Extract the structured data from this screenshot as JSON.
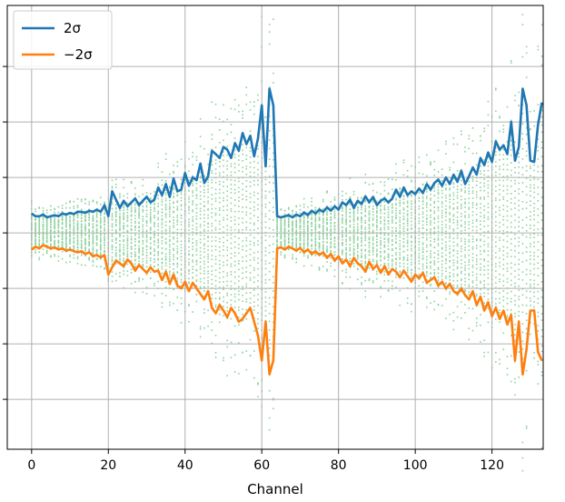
{
  "chart_data": {
    "type": "line",
    "title": "",
    "xlabel": "Channel",
    "ylabel": "",
    "xlim": [
      -6.35,
      133.35
    ],
    "ylim": [
      -3.9,
      4.1
    ],
    "x_ticks": [
      0,
      20,
      40,
      60,
      80,
      100,
      120
    ],
    "x_tick_labels": [
      "0",
      "20",
      "40",
      "60",
      "80",
      "100",
      "120"
    ],
    "y_ticks": [
      -3,
      -2,
      -1,
      0,
      1,
      2,
      3
    ],
    "y_tick_labels_visible": false,
    "grid": true,
    "legend": {
      "position": "upper-left",
      "entries": [
        "2σ",
        "−2σ"
      ]
    },
    "colors": {
      "plus_2sigma": "#1f77b4",
      "minus_2sigma": "#ff7f0e",
      "samples": "#8fd19e",
      "grid": "#b0b0b0"
    },
    "series": [
      {
        "name": "2σ",
        "color": "#1f77b4",
        "values": [
          0.35,
          0.3,
          0.3,
          0.33,
          0.28,
          0.3,
          0.32,
          0.3,
          0.35,
          0.33,
          0.36,
          0.34,
          0.38,
          0.38,
          0.36,
          0.4,
          0.38,
          0.42,
          0.38,
          0.5,
          0.3,
          0.75,
          0.6,
          0.45,
          0.58,
          0.48,
          0.55,
          0.62,
          0.5,
          0.58,
          0.65,
          0.55,
          0.6,
          0.82,
          0.68,
          0.88,
          0.65,
          0.98,
          0.75,
          0.78,
          1.08,
          0.85,
          1.0,
          0.95,
          1.25,
          0.9,
          1.02,
          1.48,
          1.42,
          1.35,
          1.55,
          1.5,
          1.35,
          1.62,
          1.48,
          1.8,
          1.6,
          1.75,
          1.38,
          1.7,
          2.3,
          1.2,
          2.6,
          2.3,
          0.3,
          0.28,
          0.3,
          0.32,
          0.28,
          0.33,
          0.3,
          0.37,
          0.32,
          0.4,
          0.35,
          0.42,
          0.38,
          0.46,
          0.4,
          0.48,
          0.42,
          0.55,
          0.5,
          0.6,
          0.45,
          0.58,
          0.52,
          0.66,
          0.55,
          0.65,
          0.5,
          0.58,
          0.62,
          0.55,
          0.62,
          0.78,
          0.65,
          0.82,
          0.68,
          0.75,
          0.7,
          0.8,
          0.72,
          0.88,
          0.78,
          0.9,
          0.96,
          0.85,
          1.0,
          0.88,
          1.05,
          0.92,
          1.12,
          0.88,
          1.02,
          1.18,
          1.05,
          1.35,
          1.22,
          1.45,
          1.28,
          1.65,
          1.5,
          1.58,
          1.42,
          2.0,
          1.3,
          1.55,
          2.6,
          2.3,
          1.3,
          1.28,
          1.95,
          2.35
        ]
      },
      {
        "name": "−2σ",
        "color": "#ff7f0e",
        "values": [
          -0.3,
          -0.25,
          -0.28,
          -0.22,
          -0.25,
          -0.28,
          -0.26,
          -0.3,
          -0.28,
          -0.32,
          -0.3,
          -0.33,
          -0.35,
          -0.33,
          -0.38,
          -0.35,
          -0.42,
          -0.4,
          -0.44,
          -0.4,
          -0.75,
          -0.62,
          -0.5,
          -0.55,
          -0.6,
          -0.48,
          -0.55,
          -0.68,
          -0.58,
          -0.65,
          -0.72,
          -0.62,
          -0.7,
          -0.68,
          -0.85,
          -0.7,
          -0.92,
          -0.75,
          -0.95,
          -1.0,
          -0.88,
          -1.05,
          -0.9,
          -1.0,
          -1.1,
          -1.2,
          -1.05,
          -1.35,
          -1.45,
          -1.3,
          -1.4,
          -1.52,
          -1.35,
          -1.45,
          -1.6,
          -1.55,
          -1.45,
          -1.35,
          -1.6,
          -1.85,
          -2.3,
          -1.6,
          -2.55,
          -2.3,
          -0.28,
          -0.26,
          -0.3,
          -0.25,
          -0.28,
          -0.32,
          -0.27,
          -0.35,
          -0.3,
          -0.38,
          -0.33,
          -0.4,
          -0.35,
          -0.45,
          -0.38,
          -0.5,
          -0.42,
          -0.55,
          -0.48,
          -0.6,
          -0.45,
          -0.55,
          -0.6,
          -0.7,
          -0.52,
          -0.65,
          -0.58,
          -0.72,
          -0.6,
          -0.75,
          -0.65,
          -0.7,
          -0.8,
          -0.68,
          -0.78,
          -0.88,
          -0.75,
          -0.82,
          -0.72,
          -0.9,
          -0.85,
          -0.8,
          -0.95,
          -0.88,
          -1.0,
          -0.92,
          -1.05,
          -1.1,
          -1.0,
          -1.12,
          -1.2,
          -1.05,
          -1.3,
          -1.15,
          -1.4,
          -1.25,
          -1.5,
          -1.35,
          -1.55,
          -1.4,
          -1.65,
          -1.48,
          -2.3,
          -1.6,
          -2.55,
          -2.1,
          -1.4,
          -1.4,
          -2.15,
          -2.3
        ]
      }
    ],
    "scatter_note_values": {
      "x_min": 0,
      "x_max": 127
    }
  }
}
